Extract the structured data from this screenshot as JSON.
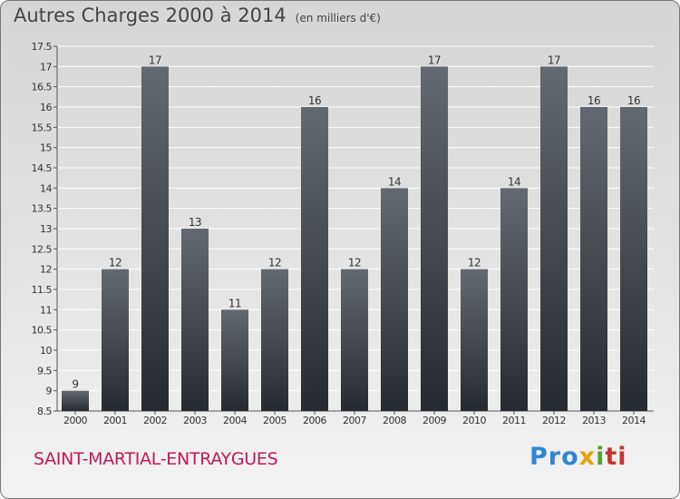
{
  "header": {
    "title": "Autres Charges 2000 à 2014",
    "subtitle": "(en milliers d'€)"
  },
  "footer": {
    "commune": "SAINT-MARTIAL-ENTRAYGUES",
    "logo_text": "Proxiti"
  },
  "colors": {
    "bar_top": "#636970",
    "bar_bottom": "#262b31",
    "commune_text": "#c2185b"
  },
  "chart_data": {
    "type": "bar",
    "title": "Autres Charges 2000 à 2014",
    "subtitle": "(en milliers d'€)",
    "categories": [
      "2000",
      "2001",
      "2002",
      "2003",
      "2004",
      "2005",
      "2006",
      "2007",
      "2008",
      "2009",
      "2010",
      "2011",
      "2012",
      "2013",
      "2014"
    ],
    "values": [
      9,
      12,
      17,
      13,
      11,
      12,
      16,
      12,
      14,
      17,
      12,
      14,
      17,
      16,
      16
    ],
    "data_labels": [
      "9",
      "12",
      "17",
      "13",
      "11",
      "12",
      "16",
      "12",
      "14",
      "17",
      "12",
      "14",
      "17",
      "16",
      "16"
    ],
    "ylim": [
      8.5,
      17.5
    ],
    "yticks": [
      "8.5",
      "9",
      "9.5",
      "10",
      "10.5",
      "11",
      "11.5",
      "12",
      "12.5",
      "13",
      "13.5",
      "14",
      "14.5",
      "15",
      "15.5",
      "16",
      "16.5",
      "17",
      "17.5"
    ],
    "grid": true,
    "xlabel": "",
    "ylabel": ""
  }
}
